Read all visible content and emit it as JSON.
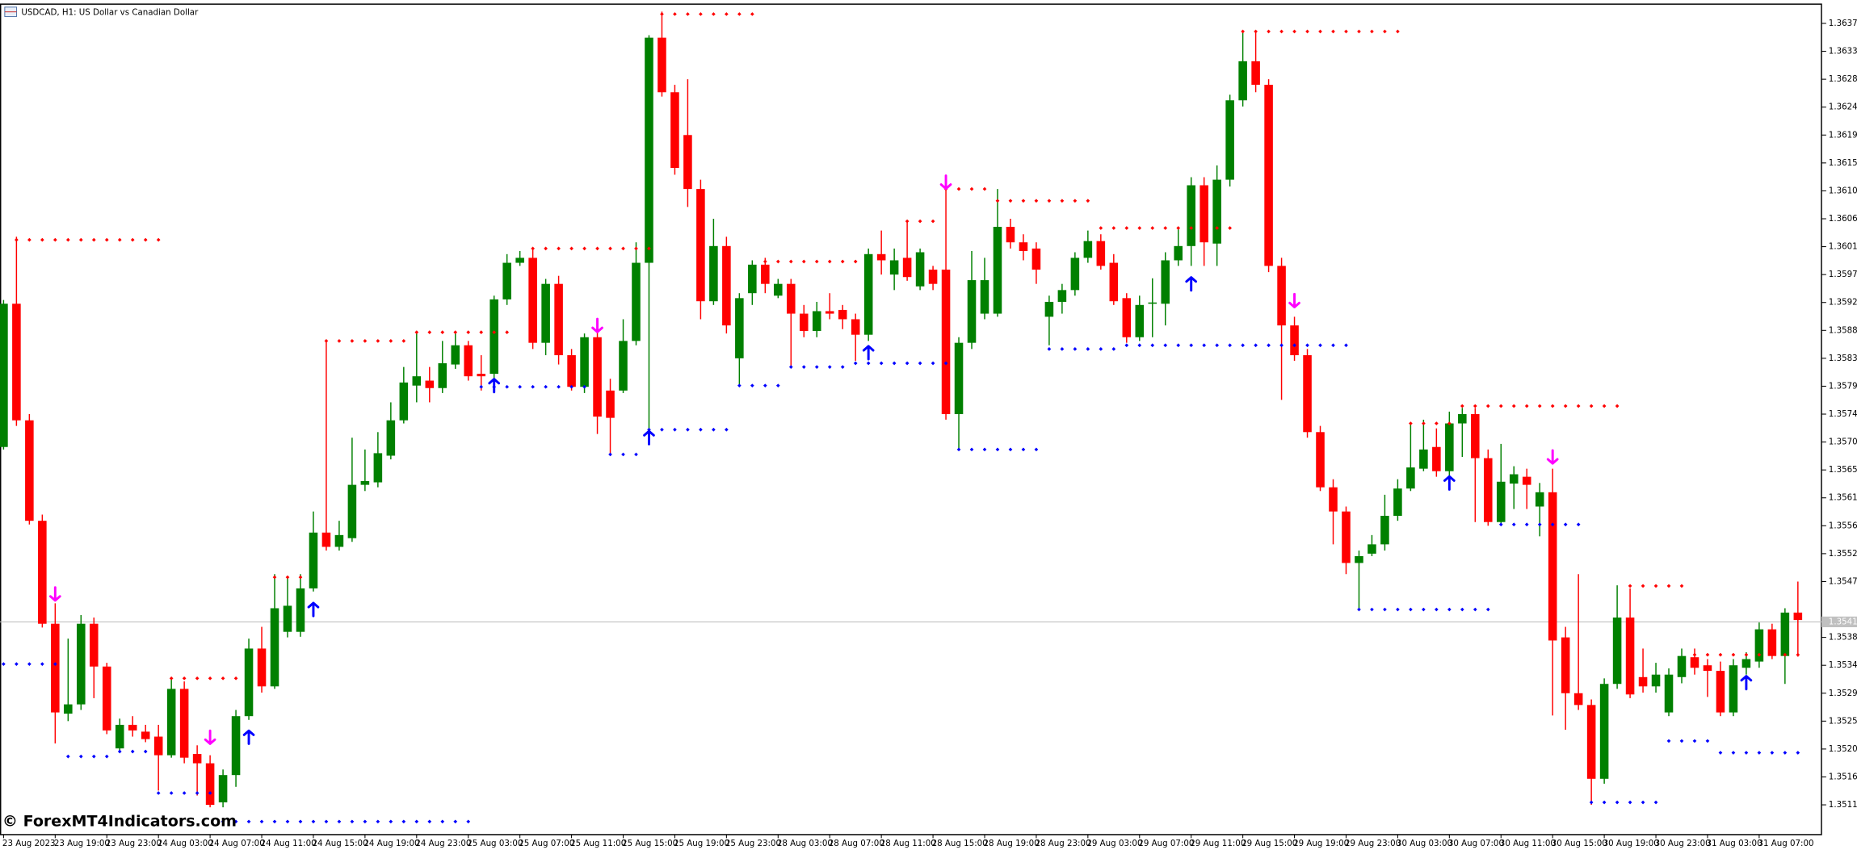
{
  "chart_data": {
    "type": "candlestick",
    "title": "USDCAD, H1: US Dollar vs Canadian Dollar",
    "watermark": "© ForexMT4Indicators.com",
    "categories": [
      "23 Aug 2023",
      null,
      null,
      null,
      "23 Aug 19:00",
      null,
      null,
      null,
      "23 Aug 23:00",
      null,
      null,
      null,
      "24 Aug 03:00",
      null,
      null,
      null,
      "24 Aug 07:00",
      null,
      null,
      null,
      "24 Aug 11:00",
      null,
      null,
      null,
      "24 Aug 15:00",
      null,
      null,
      null,
      "24 Aug 19:00",
      null,
      null,
      null,
      "24 Aug 23:00",
      null,
      null,
      null,
      "25 Aug 03:00",
      null,
      null,
      null,
      "25 Aug 07:00",
      null,
      null,
      null,
      "25 Aug 11:00",
      null,
      null,
      null,
      "25 Aug 15:00",
      null,
      null,
      null,
      "25 Aug 19:00",
      null,
      null,
      null,
      "25 Aug 23:00",
      null,
      null,
      null,
      "28 Aug 03:00",
      null,
      null,
      null,
      "28 Aug 07:00",
      null,
      null,
      null,
      "28 Aug 11:00",
      null,
      null,
      null,
      "28 Aug 15:00",
      null,
      null,
      null,
      "28 Aug 19:00",
      null,
      null,
      null,
      "28 Aug 23:00",
      null,
      null,
      null,
      "29 Aug 03:00",
      null,
      null,
      null,
      "29 Aug 07:00",
      null,
      null,
      null,
      "29 Aug 11:00",
      null,
      null,
      null,
      "29 Aug 15:00",
      null,
      null,
      null,
      "29 Aug 19:00",
      null,
      null,
      null,
      "29 Aug 23:00",
      null,
      null,
      null,
      "30 Aug 03:00",
      null,
      null,
      null,
      "30 Aug 07:00",
      null,
      null,
      null,
      "30 Aug 11:00",
      null,
      null,
      null,
      "30 Aug 15:00",
      null,
      null,
      null,
      "30 Aug 19:00",
      null,
      null,
      null,
      "30 Aug 23:00",
      null,
      null,
      null,
      "31 Aug 03:00",
      null,
      null,
      null,
      "31 Aug 07:00",
      null,
      null,
      null
    ],
    "open": [
      1.35692,
      1.35923,
      1.35735,
      1.35573,
      1.35407,
      1.35262,
      1.35277,
      1.35407,
      1.35338,
      1.35206,
      1.35244,
      1.35233,
      1.35225,
      1.35195,
      1.35302,
      1.35197,
      1.35182,
      1.35119,
      1.35163,
      1.35258,
      1.35367,
      1.35306,
      1.35394,
      1.35394,
      1.35464,
      1.35554,
      1.35531,
      1.35545,
      1.35631,
      1.35635,
      1.35678,
      1.35735,
      1.35791,
      1.35799,
      1.35787,
      1.35825,
      1.35856,
      1.3581,
      1.3581,
      1.3593,
      1.35989,
      1.35997,
      1.3586,
      1.35955,
      1.3584,
      1.35789,
      1.35869,
      1.35783,
      1.35783,
      1.35863,
      1.35989,
      1.36352,
      1.36264,
      1.36195,
      1.36108,
      1.35927,
      1.36016,
      1.35835,
      1.3594,
      1.35986,
      1.35936,
      1.35955,
      1.35907,
      1.35879,
      1.35911,
      1.35913,
      1.35898,
      1.35873,
      1.36003,
      1.3597,
      1.35997,
      1.35951,
      1.35978,
      1.35978,
      1.35745,
      1.3586,
      1.35907,
      1.35907,
      1.36047,
      1.36022,
      1.36012,
      1.35902,
      1.35926,
      1.35945,
      1.35997,
      1.36024,
      1.35989,
      1.35932,
      1.35869,
      1.35923,
      1.35923,
      1.35993,
      1.36016,
      1.36114,
      1.3602,
      1.36123,
      1.36251,
      1.36314,
      1.36276,
      1.35984,
      1.35888,
      1.3584,
      1.35716,
      1.35627,
      1.35588,
      1.35505,
      1.3552,
      1.35535,
      1.35581,
      1.35625,
      1.35657,
      1.35692,
      1.35653,
      1.3573,
      1.35745,
      1.35674,
      1.35571,
      1.35633,
      1.35644,
      1.35596,
      1.35619,
      1.35385,
      1.35295,
      1.35276,
      1.35157,
      1.3531,
      1.35417,
      1.35321,
      1.35306,
      1.35264,
      1.35321,
      1.35353,
      1.3534,
      1.35331,
      1.35264,
      1.35336,
      1.35346,
      1.35398,
      1.35355,
      1.35425
    ],
    "high": [
      1.35929,
      1.36031,
      1.35745,
      1.35583,
      1.3544,
      1.35383,
      1.35421,
      1.35417,
      1.35344,
      1.35254,
      1.35258,
      1.35244,
      1.35244,
      1.35321,
      1.35314,
      1.35211,
      1.35195,
      1.35172,
      1.35268,
      1.35383,
      1.35402,
      1.35487,
      1.35482,
      1.35487,
      1.35588,
      1.35865,
      1.35573,
      1.35707,
      1.35688,
      1.35716,
      1.35764,
      1.35821,
      1.35875,
      1.35821,
      1.35863,
      1.35875,
      1.35863,
      1.3584,
      1.35936,
      1.36003,
      1.36008,
      1.36012,
      1.35963,
      1.35968,
      1.3585,
      1.35875,
      1.35898,
      1.35802,
      1.35898,
      1.36022,
      1.36356,
      1.36394,
      1.36276,
      1.36285,
      1.36123,
      1.3606,
      1.36031,
      1.3594,
      1.35993,
      1.35997,
      1.35963,
      1.35963,
      1.35921,
      1.35926,
      1.3594,
      1.35921,
      1.35907,
      1.36012,
      1.36041,
      1.36012,
      1.36056,
      1.36012,
      1.35984,
      1.36117,
      1.35869,
      1.36008,
      1.35997,
      1.36108,
      1.3606,
      1.36035,
      1.36022,
      1.35936,
      1.35955,
      1.36006,
      1.36041,
      1.36035,
      1.36003,
      1.3594,
      1.35936,
      1.35964,
      1.36006,
      1.36047,
      1.36127,
      1.36127,
      1.36146,
      1.3626,
      1.3636,
      1.3636,
      1.36285,
      1.35997,
      1.35902,
      1.3585,
      1.35726,
      1.3564,
      1.35596,
      1.35525,
      1.3555,
      1.35615,
      1.3564,
      1.3573,
      1.35736,
      1.35722,
      1.35749,
      1.35755,
      1.35755,
      1.35688,
      1.35697,
      1.35661,
      1.35657,
      1.35634,
      1.35657,
      1.35402,
      1.35487,
      1.35285,
      1.35319,
      1.35469,
      1.35464,
      1.35367,
      1.35344,
      1.35335,
      1.35367,
      1.35367,
      1.3535,
      1.35346,
      1.3535,
      1.35361,
      1.35409,
      1.35407,
      1.35432,
      1.35475
    ],
    "low": [
      1.35688,
      1.35726,
      1.35567,
      1.35401,
      1.35214,
      1.3525,
      1.35268,
      1.35287,
      1.35229,
      1.352,
      1.35225,
      1.35216,
      1.35138,
      1.35191,
      1.35182,
      1.3513,
      1.35111,
      1.35111,
      1.35144,
      1.35252,
      1.35296,
      1.35302,
      1.35385,
      1.35386,
      1.35459,
      1.35525,
      1.35525,
      1.35539,
      1.35621,
      1.35627,
      1.35672,
      1.3573,
      1.35764,
      1.35764,
      1.35779,
      1.35818,
      1.35799,
      1.35783,
      1.35799,
      1.35921,
      1.35984,
      1.3585,
      1.3584,
      1.35825,
      1.35783,
      1.35779,
      1.35713,
      1.35678,
      1.35779,
      1.35856,
      1.35711,
      1.36257,
      1.36131,
      1.36079,
      1.35898,
      1.35921,
      1.35875,
      1.35793,
      1.35921,
      1.3594,
      1.35932,
      1.35821,
      1.35869,
      1.35869,
      1.35898,
      1.35882,
      1.35831,
      1.35863,
      1.3597,
      1.35945,
      1.3596,
      1.35945,
      1.35945,
      1.35736,
      1.35688,
      1.3585,
      1.35898,
      1.35902,
      1.36012,
      1.35993,
      1.35955,
      1.35856,
      1.35907,
      1.35936,
      1.35989,
      1.35978,
      1.35921,
      1.3586,
      1.35863,
      1.35869,
      1.35888,
      1.35984,
      1.35984,
      1.35984,
      1.35984,
      1.36112,
      1.36241,
      1.36264,
      1.35974,
      1.35768,
      1.35831,
      1.35707,
      1.35621,
      1.35535,
      1.35487,
      1.3543,
      1.35516,
      1.35525,
      1.35573,
      1.35621,
      1.35653,
      1.35644,
      1.35646,
      1.35676,
      1.35571,
      1.35565,
      1.35565,
      1.35592,
      1.35592,
      1.35548,
      1.35259,
      1.35236,
      1.35268,
      1.35115,
      1.35149,
      1.35302,
      1.35287,
      1.35296,
      1.35296,
      1.35258,
      1.35311,
      1.35325,
      1.35289,
      1.35258,
      1.35258,
      1.35325,
      1.35336,
      1.3535,
      1.3531,
      1.35354
    ],
    "close": [
      1.35923,
      1.35735,
      1.35573,
      1.35407,
      1.35264,
      1.35277,
      1.35407,
      1.35338,
      1.35235,
      1.35244,
      1.35235,
      1.35221,
      1.35195,
      1.35302,
      1.35191,
      1.35182,
      1.35115,
      1.35163,
      1.35258,
      1.35367,
      1.35306,
      1.35432,
      1.35436,
      1.35464,
      1.35554,
      1.35531,
      1.3555,
      1.35631,
      1.35637,
      1.35682,
      1.35735,
      1.35796,
      1.35806,
      1.35787,
      1.35827,
      1.35856,
      1.35806,
      1.35806,
      1.3593,
      1.35989,
      1.35997,
      1.3586,
      1.35955,
      1.3584,
      1.35789,
      1.35869,
      1.35741,
      1.35739,
      1.35863,
      1.35989,
      1.36352,
      1.36264,
      1.36142,
      1.36108,
      1.35927,
      1.36016,
      1.35888,
      1.35932,
      1.35986,
      1.35955,
      1.35955,
      1.35907,
      1.35879,
      1.35911,
      1.35907,
      1.35898,
      1.35873,
      1.36003,
      1.35993,
      1.35993,
      1.35966,
      1.36006,
      1.35955,
      1.35745,
      1.3586,
      1.35961,
      1.35961,
      1.36047,
      1.36022,
      1.36008,
      1.35978,
      1.35926,
      1.35945,
      1.35997,
      1.36024,
      1.35984,
      1.35927,
      1.35869,
      1.35921,
      1.35925,
      1.35993,
      1.36016,
      1.36114,
      1.36022,
      1.36123,
      1.36251,
      1.36314,
      1.36276,
      1.35984,
      1.35888,
      1.3584,
      1.35716,
      1.35627,
      1.35588,
      1.35505,
      1.35516,
      1.35535,
      1.35581,
      1.35625,
      1.35659,
      1.35688,
      1.35653,
      1.3573,
      1.35745,
      1.35674,
      1.35571,
      1.35636,
      1.35648,
      1.35631,
      1.35619,
      1.3538,
      1.35295,
      1.35276,
      1.35157,
      1.3531,
      1.35417,
      1.35293,
      1.35306,
      1.35325,
      1.35325,
      1.35355,
      1.35336,
      1.35331,
      1.35264,
      1.3534,
      1.3535,
      1.35398,
      1.35355,
      1.35425,
      1.35413
    ],
    "up_color": "#008000",
    "down_color": "#ff0000",
    "ylim": [
      1.35067,
      1.36407
    ],
    "yticks": [
      1.35115,
      {
        "value": 1.3516,
        "label": "1.35160"
      },
      1.35205,
      {
        "value": 1.3525,
        "label": "1.35250"
      },
      1.35295,
      {
        "value": 1.3534,
        "label": "1.35340"
      },
      1.35385,
      1.35475,
      {
        "value": 1.3552,
        "label": "1.35520"
      },
      1.35565,
      {
        "value": 1.3561,
        "label": "1.35610"
      },
      1.35655,
      {
        "value": 1.357,
        "label": "1.35700"
      },
      1.35745,
      {
        "value": 1.3579,
        "label": "1.35790"
      },
      1.35835,
      {
        "value": 1.3588,
        "label": "1.35880"
      },
      1.35925,
      {
        "value": 1.3597,
        "label": "1.35970"
      },
      1.36015,
      {
        "value": 1.3606,
        "label": "1.36060"
      },
      1.36105,
      {
        "value": 1.3615,
        "label": "1.36150"
      },
      1.36195,
      {
        "value": 1.3624,
        "label": "1.36240"
      },
      1.36285,
      {
        "value": 1.3633,
        "label": "1.36330"
      },
      1.36375
    ],
    "current_price": {
      "value": 1.3541,
      "label": "1.35410"
    },
    "resistance": {
      "color": "#ff0000",
      "levels": [
        {
          "from": 1,
          "to": 12,
          "value": 1.36026
        },
        {
          "from": 13,
          "to": 18,
          "value": 1.35319
        },
        {
          "from": 21,
          "to": 23,
          "value": 1.35482
        },
        {
          "from": 25,
          "to": 31,
          "value": 1.35863
        },
        {
          "from": 32,
          "to": 39,
          "value": 1.35877
        },
        {
          "from": 41,
          "to": 50,
          "value": 1.36012
        },
        {
          "from": 51,
          "to": 58,
          "value": 1.3639
        },
        {
          "from": 59,
          "to": 66,
          "value": 1.35991
        },
        {
          "from": 70,
          "to": 72,
          "value": 1.36056
        },
        {
          "from": 73,
          "to": 76,
          "value": 1.36108
        },
        {
          "from": 77,
          "to": 84,
          "value": 1.36089
        },
        {
          "from": 85,
          "to": 95,
          "value": 1.36045
        },
        {
          "from": 96,
          "to": 108,
          "value": 1.36362
        },
        {
          "from": 109,
          "to": 112,
          "value": 1.3573
        },
        {
          "from": 113,
          "to": 125,
          "value": 1.35758
        },
        {
          "from": 126,
          "to": 130,
          "value": 1.35468
        },
        {
          "from": 131,
          "to": 139,
          "value": 1.35357
        }
      ]
    },
    "support": {
      "color": "#0000ff",
      "levels": [
        {
          "from": 0,
          "to": 4,
          "value": 1.35342
        },
        {
          "from": 5,
          "to": 8,
          "value": 1.35193
        },
        {
          "from": 9,
          "to": 11,
          "value": 1.35201
        },
        {
          "from": 12,
          "to": 16,
          "value": 1.35134
        },
        {
          "from": 17,
          "to": 36,
          "value": 1.35088
        },
        {
          "from": 37,
          "to": 45,
          "value": 1.35789
        },
        {
          "from": 47,
          "to": 49,
          "value": 1.3568
        },
        {
          "from": 50,
          "to": 56,
          "value": 1.3572
        },
        {
          "from": 57,
          "to": 60,
          "value": 1.35791
        },
        {
          "from": 61,
          "to": 65,
          "value": 1.35821
        },
        {
          "from": 66,
          "to": 73,
          "value": 1.35827
        },
        {
          "from": 74,
          "to": 80,
          "value": 1.35688
        },
        {
          "from": 81,
          "to": 86,
          "value": 1.3585
        },
        {
          "from": 87,
          "to": 104,
          "value": 1.35856
        },
        {
          "from": 105,
          "to": 115,
          "value": 1.3543
        },
        {
          "from": 116,
          "to": 122,
          "value": 1.35567
        },
        {
          "from": 123,
          "to": 128,
          "value": 1.35119
        },
        {
          "from": 129,
          "to": 132,
          "value": 1.35218
        },
        {
          "from": 133,
          "to": 139,
          "value": 1.35199
        }
      ]
    },
    "sell_arrows": {
      "color": "#ff00ff",
      "points": [
        {
          "index": 4,
          "value": 1.35455
        },
        {
          "index": 16,
          "value": 1.35224
        },
        {
          "index": 46,
          "value": 1.35888
        },
        {
          "index": 73,
          "value": 1.36119
        },
        {
          "index": 100,
          "value": 1.35928
        },
        {
          "index": 120,
          "value": 1.35676
        }
      ]
    },
    "buy_arrows": {
      "color": "#0000ff",
      "points": [
        {
          "index": 19,
          "value": 1.35224
        },
        {
          "index": 24,
          "value": 1.3543
        },
        {
          "index": 38,
          "value": 1.35791
        },
        {
          "index": 50,
          "value": 1.35707
        },
        {
          "index": 67,
          "value": 1.35844
        },
        {
          "index": 92,
          "value": 1.35955
        },
        {
          "index": 112,
          "value": 1.35634
        },
        {
          "index": 135,
          "value": 1.35312
        }
      ]
    }
  }
}
